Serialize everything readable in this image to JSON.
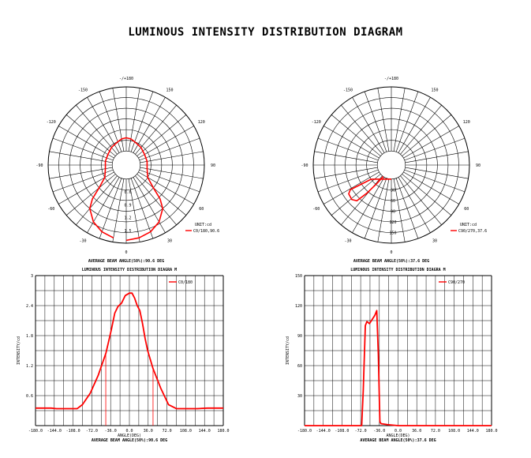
{
  "title": "LUMINOUS INTENSITY DISTRIBUTION DIAGRAM",
  "colors": {
    "curve": "#ff0000",
    "grid": "#000000"
  },
  "chart_data": [
    {
      "type": "polar",
      "angle_labels": [
        "-/+180",
        "150",
        "120",
        "90",
        "60",
        "30",
        "0",
        "-30",
        "-60",
        "-90",
        "-120",
        "-150"
      ],
      "radial_labels": [
        "0.6",
        "0.9",
        "1.2",
        "1.5"
      ],
      "unit": "UNIT:cd",
      "legend": "C0/180,90.6",
      "caption": "AVERAGE BEAM ANGLE(50%):90.6 DEG",
      "series": [
        {
          "name": "C0/180,90.6",
          "points": [
            [
              0,
              1.72
            ],
            [
              10,
              1.68
            ],
            [
              20,
              1.6
            ],
            [
              30,
              1.45
            ],
            [
              40,
              1.2
            ],
            [
              45,
              0.95
            ],
            [
              50,
              0.6
            ],
            [
              60,
              0.3
            ],
            [
              80,
              0.2
            ],
            [
              100,
              0.2
            ],
            [
              120,
              0.2
            ],
            [
              140,
              0.25
            ],
            [
              160,
              0.3
            ],
            [
              170,
              0.35
            ],
            [
              180,
              0.37
            ],
            [
              190,
              0.35
            ],
            [
              200,
              0.3
            ],
            [
              220,
              0.25
            ],
            [
              240,
              0.2
            ],
            [
              260,
              0.2
            ],
            [
              280,
              0.2
            ],
            [
              300,
              0.3
            ],
            [
              310,
              0.6
            ],
            [
              315,
              0.95
            ],
            [
              320,
              1.2
            ],
            [
              330,
              1.45
            ],
            [
              340,
              1.6
            ],
            [
              350,
              1.68
            ]
          ]
        }
      ]
    },
    {
      "type": "polar",
      "angle_labels": [
        "-/+180",
        "150",
        "120",
        "90",
        "60",
        "30",
        "0",
        "-30",
        "-60",
        "-90",
        "-120",
        "-150"
      ],
      "radial_labels": [
        "30",
        "60",
        "90",
        "120",
        "150"
      ],
      "unit": "UNIT:cd",
      "legend": "C90/270,37.6",
      "caption": "AVERAGE BEAM ANGLE(50%):37.6 DEG",
      "series": [
        {
          "name": "C90/270,37.6",
          "points": [
            [
              0,
              0
            ],
            [
              360,
              0
            ],
            [
              305,
              30
            ],
            [
              301,
              95
            ],
            [
              304,
              105
            ],
            [
              311,
              108
            ],
            [
              316,
              100
            ],
            [
              319,
              65
            ],
            [
              322,
              25
            ],
            [
              325,
              0
            ]
          ]
        }
      ]
    },
    {
      "type": "line",
      "title": "LUMINOUS INTENSITY DISTRIBUTION DIAGRA M",
      "ylabel": "INTENSITY/cd",
      "xlabel": "ANGLE(DEG)",
      "caption": "AVERAGE BEAM ANGLE(50%):90.6 DEG",
      "xlim": [
        -180,
        180
      ],
      "ylim": [
        0,
        3
      ],
      "xticks": [
        "-180.0",
        "-144.0",
        "-108.0",
        "-72.0",
        "-36.0",
        "0.0",
        "36.0",
        "72.0",
        "108.0",
        "144.0",
        "180.0"
      ],
      "yticks": [
        "0.6",
        "1.2",
        "1.8",
        "2.4",
        "3"
      ],
      "beam_markers": [
        -45.3,
        45.3
      ],
      "series": [
        {
          "name": "C0/180",
          "x": [
            -180,
            -150,
            -140,
            -130,
            -110,
            -100,
            -90,
            -75,
            -60,
            -45,
            -35,
            -28,
            -22,
            -15,
            -8,
            0,
            5,
            10,
            15,
            20,
            25,
            30,
            35,
            45,
            60,
            75,
            90,
            100,
            110,
            130,
            150,
            180
          ],
          "y": [
            0.35,
            0.35,
            0.34,
            0.34,
            0.34,
            0.34,
            0.42,
            0.65,
            1.0,
            1.45,
            1.9,
            2.25,
            2.38,
            2.45,
            2.6,
            2.65,
            2.65,
            2.55,
            2.4,
            2.3,
            2.05,
            1.75,
            1.5,
            1.15,
            0.75,
            0.42,
            0.34,
            0.34,
            0.34,
            0.34,
            0.35,
            0.35
          ]
        }
      ]
    },
    {
      "type": "line",
      "title": "LUMINOUS INTENSITY DISTRIBUTION DIAGRA M",
      "ylabel": "INTENSITY/cd",
      "xlabel": "ANGLE(DEG)",
      "caption": "AVERAGE BEAM ANGLE(50%):37.6 DEG",
      "xlim": [
        -180,
        180
      ],
      "ylim": [
        0,
        150
      ],
      "xticks": [
        "-180.0",
        "-144.0",
        "-108.0",
        "-72.0",
        "-36.0",
        "0.0",
        "36.0",
        "72.0",
        "108.0",
        "144.0",
        "180.0"
      ],
      "yticks": [
        "30",
        "60",
        "90",
        "120",
        "150"
      ],
      "series": [
        {
          "name": "C90/270",
          "x": [
            -180,
            -100,
            -75,
            -70,
            -67,
            -63,
            -60,
            -55,
            -50,
            -45,
            -41,
            -38,
            -35,
            -33,
            -20,
            0,
            30,
            60,
            120,
            180
          ],
          "y": [
            0,
            0,
            0,
            0,
            35,
            100,
            104,
            102,
            106,
            110,
            115,
            72,
            4,
            2,
            1,
            0,
            0,
            0,
            0,
            0
          ]
        }
      ]
    }
  ]
}
